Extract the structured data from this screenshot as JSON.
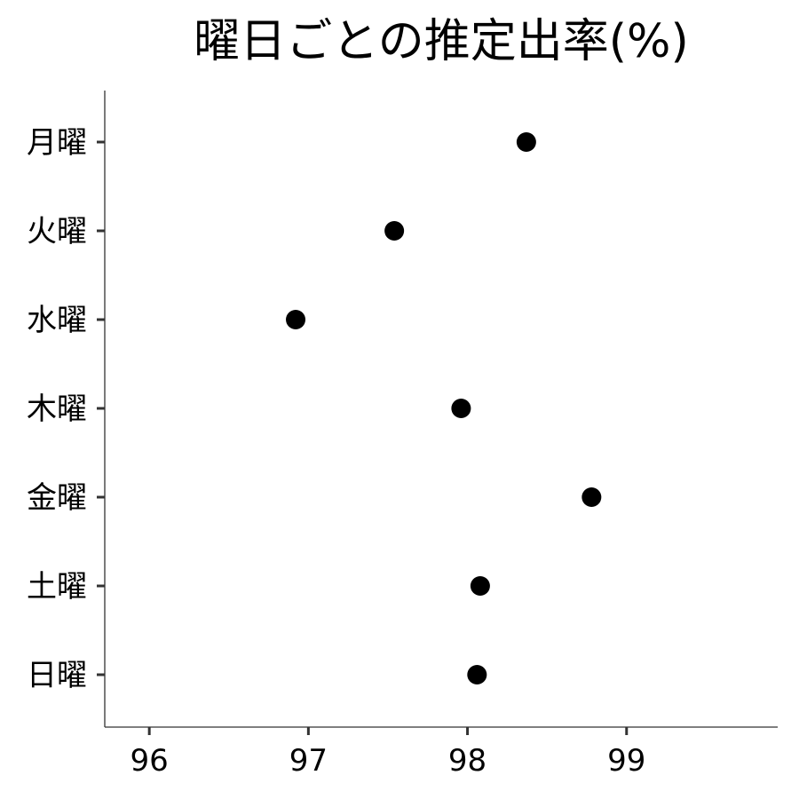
{
  "chart_data": {
    "type": "scatter",
    "title": "曜日ごとの推定出率(%)",
    "xlabel": "",
    "ylabel": "",
    "xlim": [
      95.72,
      99.95
    ],
    "x_ticks": [
      96,
      97,
      98,
      99
    ],
    "x_tick_labels": [
      "96",
      "97",
      "98",
      "99"
    ],
    "categories": [
      "月曜",
      "火曜",
      "水曜",
      "木曜",
      "金曜",
      "土曜",
      "日曜"
    ],
    "values": [
      98.37,
      97.54,
      96.92,
      97.96,
      98.78,
      98.08,
      98.06
    ],
    "point_color": "#000000",
    "grid": false,
    "legend": "none"
  }
}
